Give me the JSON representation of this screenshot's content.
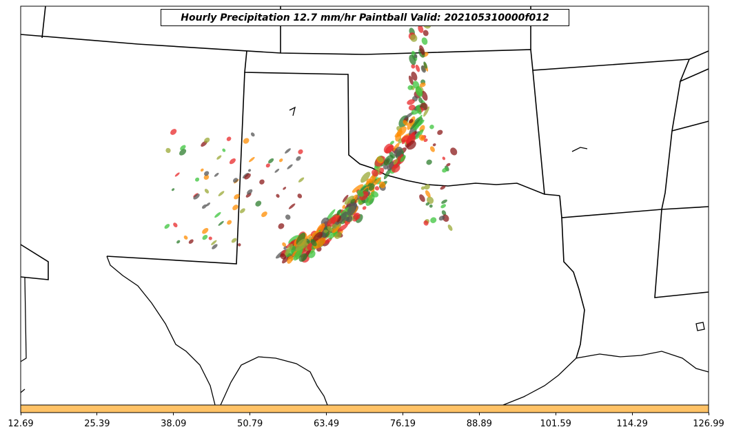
{
  "title": "Hourly Precipitation 12.7 mm/hr Paintball Valid: 202105310000f012",
  "colorbar": {
    "color": "#ffc266",
    "ticks": [
      "12.69",
      "25.39",
      "38.09",
      "50.79",
      "63.49",
      "76.19",
      "88.89",
      "101.59",
      "114.29",
      "126.99"
    ]
  },
  "blob_colors": [
    "#e8282a",
    "#ff8c00",
    "#2e7d2e",
    "#8b1a1a",
    "#9aa836",
    "#3cc43c",
    "#555555"
  ],
  "map_outline_color": "#000000"
}
